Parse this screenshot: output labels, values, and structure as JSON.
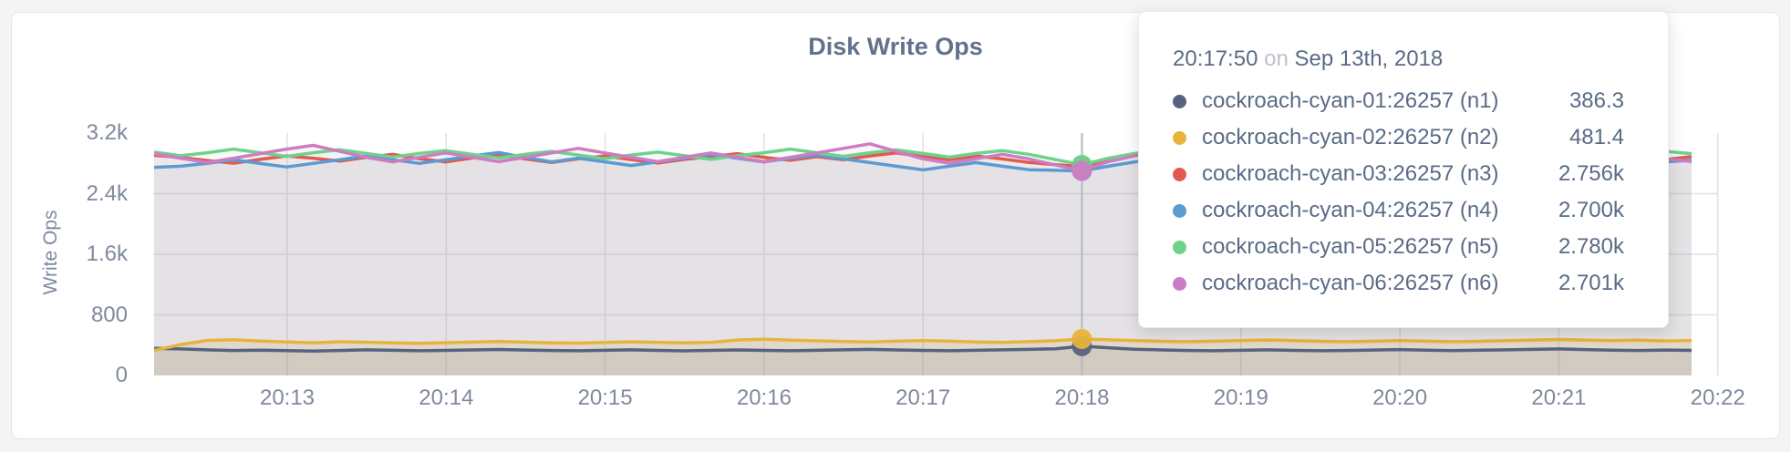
{
  "chart_data": {
    "type": "line",
    "title": "Disk Write Ops",
    "xlabel": "",
    "ylabel": "Write Ops",
    "grid": true,
    "legend_position": "hover-tooltip",
    "ylim": [
      0,
      3200
    ],
    "y_ticks": [
      {
        "label": "0",
        "value": 0
      },
      {
        "label": "800",
        "value": 800
      },
      {
        "label": "1.6k",
        "value": 1600
      },
      {
        "label": "2.4k",
        "value": 2400
      },
      {
        "label": "3.2k",
        "value": 3200
      }
    ],
    "x_tick_labels": [
      "20:13",
      "20:14",
      "20:15",
      "20:16",
      "20:17",
      "20:18",
      "20:19",
      "20:20",
      "20:21",
      "20:22"
    ],
    "x_start_time": "20:12:10",
    "x_step_seconds": 10,
    "hover_index": 35,
    "series": [
      {
        "name": "cockroach-cyan-01:26257 (n1)",
        "color": "#566380",
        "fill_opacity": 0.14,
        "values": [
          358,
          350,
          338,
          330,
          334,
          328,
          322,
          330,
          338,
          332,
          326,
          331,
          337,
          343,
          336,
          330,
          326,
          332,
          338,
          331,
          325,
          331,
          337,
          331,
          326,
          332,
          338,
          344,
          337,
          331,
          326,
          332,
          338,
          344,
          352,
          386.3,
          366,
          347,
          337,
          330,
          326,
          332,
          338,
          331,
          326,
          330,
          336,
          342,
          335,
          329,
          333,
          338,
          344,
          350,
          342,
          335,
          330,
          336,
          331
        ]
      },
      {
        "name": "cockroach-cyan-02:26257 (n2)",
        "color": "#e6b43c",
        "fill_opacity": 0.18,
        "values": [
          330,
          408,
          462,
          470,
          455,
          441,
          431,
          445,
          438,
          429,
          424,
          432,
          440,
          448,
          439,
          431,
          427,
          436,
          444,
          435,
          429,
          437,
          468,
          477,
          467,
          457,
          449,
          443,
          452,
          461,
          452,
          443,
          437,
          446,
          458,
          481.4,
          470,
          459,
          451,
          445,
          452,
          461,
          468,
          459,
          451,
          445,
          452,
          460,
          452,
          445,
          451,
          459,
          467,
          475,
          467,
          459,
          465,
          456,
          461
        ]
      },
      {
        "name": "cockroach-cyan-03:26257 (n3)",
        "color": "#e05a52",
        "fill_opacity": 0.07,
        "values": [
          2906,
          2878,
          2838,
          2802,
          2852,
          2898,
          2868,
          2830,
          2880,
          2918,
          2862,
          2820,
          2870,
          2908,
          2858,
          2812,
          2860,
          2898,
          2850,
          2804,
          2852,
          2890,
          2928,
          2880,
          2840,
          2888,
          2848,
          2898,
          2938,
          2888,
          2848,
          2898,
          2858,
          2812,
          2784,
          2756,
          2848,
          2900,
          2948,
          2898,
          2850,
          2898,
          2938,
          2888,
          2848,
          2888,
          2928,
          2878,
          2840,
          2880,
          2918,
          2868,
          2830,
          2870,
          2908,
          2858,
          2898,
          2850,
          2888
        ]
      },
      {
        "name": "cockroach-cyan-04:26257 (n4)",
        "color": "#5b9bd4",
        "fill_opacity": 0.07,
        "values": [
          2748,
          2762,
          2800,
          2848,
          2798,
          2752,
          2800,
          2848,
          2898,
          2848,
          2800,
          2848,
          2898,
          2944,
          2878,
          2820,
          2868,
          2820,
          2772,
          2820,
          2868,
          2916,
          2868,
          2820,
          2868,
          2908,
          2858,
          2810,
          2762,
          2714,
          2762,
          2810,
          2762,
          2716,
          2708,
          2700,
          2762,
          2820,
          2868,
          2820,
          2772,
          2820,
          2868,
          2820,
          2772,
          2820,
          2868,
          2916,
          2868,
          2820,
          2868,
          2820,
          2772,
          2820,
          2868,
          2916,
          2868,
          2820,
          2842
        ]
      },
      {
        "name": "cockroach-cyan-05:26257 (n5)",
        "color": "#6ed28c",
        "fill_opacity": 0.07,
        "values": [
          2948,
          2900,
          2940,
          2988,
          2940,
          2892,
          2940,
          2980,
          2932,
          2884,
          2930,
          2968,
          2920,
          2872,
          2920,
          2958,
          2910,
          2862,
          2910,
          2948,
          2900,
          2852,
          2900,
          2940,
          2988,
          2940,
          2892,
          2940,
          2978,
          2930,
          2882,
          2930,
          2968,
          2920,
          2850,
          2780,
          2868,
          2930,
          2982,
          3028,
          2968,
          2920,
          2958,
          2910,
          2862,
          2910,
          2948,
          2900,
          2940,
          2988,
          2940,
          2892,
          2930,
          2968,
          2920,
          2872,
          2920,
          2958,
          2928
        ]
      },
      {
        "name": "cockroach-cyan-06:26257 (n6)",
        "color": "#cd7dc3",
        "fill_opacity": 0.07,
        "values": [
          2928,
          2868,
          2810,
          2868,
          2928,
          2988,
          3038,
          2958,
          2880,
          2820,
          2880,
          2938,
          2880,
          2822,
          2880,
          2938,
          2998,
          2938,
          2880,
          2822,
          2880,
          2938,
          2880,
          2822,
          2880,
          2938,
          2998,
          3058,
          2958,
          2860,
          2802,
          2860,
          2920,
          2860,
          2780,
          2701,
          2822,
          2900,
          2978,
          3048,
          2948,
          2860,
          2920,
          2860,
          2802,
          2860,
          2920,
          2978,
          2920,
          2860,
          2920,
          2860,
          2802,
          2860,
          2920,
          2978,
          2920,
          2860,
          2824
        ]
      }
    ]
  },
  "tooltip": {
    "time": "20:17:50",
    "conjunction": "on",
    "date": "Sep 13th, 2018",
    "rows": [
      {
        "name": "cockroach-cyan-01:26257 (n1)",
        "value": "386.3",
        "color": "#566380"
      },
      {
        "name": "cockroach-cyan-02:26257 (n2)",
        "value": "481.4",
        "color": "#e6b43c"
      },
      {
        "name": "cockroach-cyan-03:26257 (n3)",
        "value": "2.756k",
        "color": "#e05a52"
      },
      {
        "name": "cockroach-cyan-04:26257 (n4)",
        "value": "2.700k",
        "color": "#5b9bd4"
      },
      {
        "name": "cockroach-cyan-05:26257 (n5)",
        "value": "2.780k",
        "color": "#6ed28c"
      },
      {
        "name": "cockroach-cyan-06:26257 (n6)",
        "value": "2.701k",
        "color": "#cd7dc3"
      }
    ]
  }
}
